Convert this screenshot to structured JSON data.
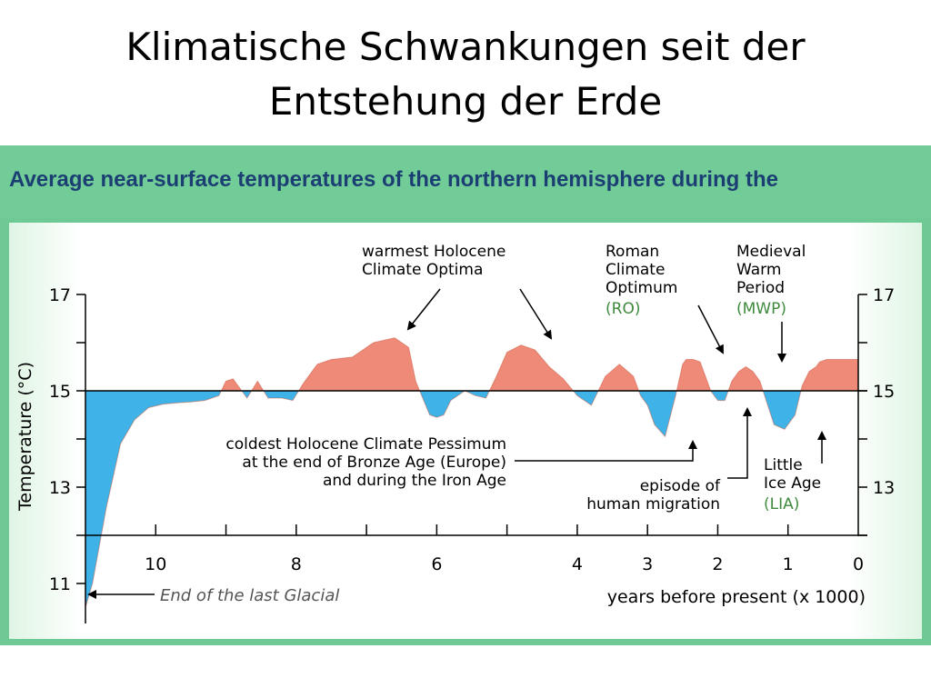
{
  "slide": {
    "title_line1": "Klimatische Schwankungen seit der",
    "title_line2": "Entstehung der Erde",
    "header": "Average near-surface temperatures of the northern hemisphere during the"
  },
  "colors": {
    "warm_fill": "#f08a78",
    "cold_fill": "#3fb3e8",
    "header_bg": "#72cc98",
    "header_text": "#1c3f73",
    "annotation_green": "#3f8a3f"
  },
  "chart_data": {
    "type": "area",
    "baseline": 15,
    "ylabel": "Temperature (°C)",
    "xlabel": "years before present (x 1000)",
    "xlim": [
      11.0,
      0
    ],
    "ylim": [
      10.5,
      17
    ],
    "x_ticks": [
      10,
      8,
      6,
      4,
      3,
      2,
      1,
      0
    ],
    "y_ticks": [
      17,
      15,
      13,
      11
    ],
    "x": [
      11.0,
      10.9,
      10.7,
      10.5,
      10.3,
      10.1,
      9.9,
      9.7,
      9.5,
      9.3,
      9.1,
      9.0,
      8.9,
      8.7,
      8.55,
      8.4,
      8.2,
      8.05,
      7.9,
      7.7,
      7.5,
      7.2,
      6.9,
      6.6,
      6.4,
      6.3,
      6.1,
      6.0,
      5.9,
      5.8,
      5.6,
      5.45,
      5.3,
      5.15,
      5.0,
      4.8,
      4.6,
      4.4,
      4.2,
      4.0,
      3.8,
      3.6,
      3.4,
      3.2,
      3.1,
      3.0,
      2.9,
      2.75,
      2.6,
      2.5,
      2.45,
      2.35,
      2.25,
      2.1,
      2.0,
      1.9,
      1.8,
      1.7,
      1.6,
      1.5,
      1.4,
      1.2,
      1.05,
      0.9,
      0.8,
      0.7,
      0.6,
      0.55,
      0.45,
      0.35,
      0.25,
      0.15,
      0.05,
      0
    ],
    "y": [
      10.5,
      11.0,
      12.6,
      13.9,
      14.4,
      14.65,
      14.72,
      14.75,
      14.77,
      14.8,
      14.9,
      15.2,
      15.25,
      14.85,
      15.2,
      14.85,
      14.85,
      14.8,
      15.15,
      15.55,
      15.65,
      15.7,
      16.0,
      16.1,
      15.9,
      15.2,
      14.5,
      14.45,
      14.5,
      14.8,
      15.0,
      14.9,
      14.85,
      15.3,
      15.8,
      15.95,
      15.85,
      15.5,
      15.25,
      14.9,
      14.7,
      15.3,
      15.55,
      15.3,
      14.9,
      14.7,
      14.3,
      14.05,
      14.9,
      15.55,
      15.65,
      15.65,
      15.6,
      15.0,
      14.8,
      14.8,
      15.2,
      15.4,
      15.5,
      15.4,
      15.2,
      14.3,
      14.2,
      14.5,
      15.1,
      15.4,
      15.5,
      15.6,
      15.65,
      15.65,
      15.65,
      15.65,
      15.65,
      15.65
    ],
    "annotations": {
      "warmest": [
        "warmest Holocene",
        "Climate Optima"
      ],
      "roman": [
        "Roman",
        "Climate",
        "Optimum"
      ],
      "roman_abbr": "(RO)",
      "medieval": [
        "Medieval",
        "Warm",
        "Period"
      ],
      "medieval_abbr": "(MWP)",
      "coldest": [
        "coldest Holocene Climate Pessimum",
        "at the end of Bronze Age (Europe)",
        "and during the Iron Age"
      ],
      "migration": [
        "episode of",
        "human migration"
      ],
      "lia": [
        "Little",
        "Ice Age"
      ],
      "lia_abbr": "(LIA)",
      "glacial": "End of the last Glacial"
    }
  }
}
